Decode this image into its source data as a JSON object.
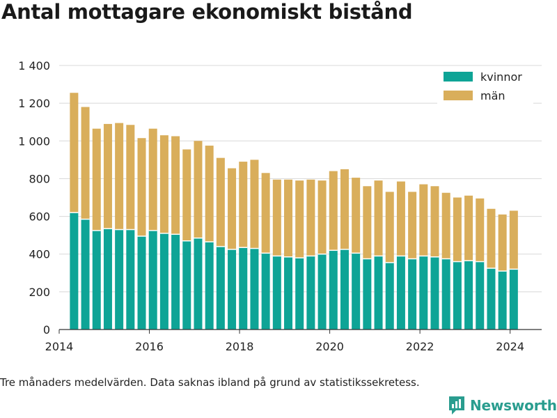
{
  "title": "Antal mottagare ekonomiskt bistånd",
  "footnote": "Tre månaders medelvärden. Data saknas ibland på grund av statistikssekretess.",
  "brand": {
    "name": "Newsworthy",
    "color": "#2a9d8f",
    "logo_icon": "bar-chart-speech-bubble-icon"
  },
  "colors": {
    "kvinnor": "#0ea496",
    "män": "#d9ae5b",
    "grid": "#d8d8d8",
    "axis": "#333333"
  },
  "chart_data": {
    "type": "bar",
    "stacked": true,
    "title": "Antal mottagare ekonomiskt bistånd",
    "xlabel": "",
    "ylabel": "",
    "ylim": [
      0,
      1400
    ],
    "xlim": [
      2014.0,
      2024.7
    ],
    "yticks": [
      0,
      200,
      400,
      600,
      800,
      1000,
      1200,
      1400
    ],
    "ytick_labels": [
      "0",
      "200",
      "400",
      "600",
      "800",
      "1 000",
      "1 200",
      "1 400"
    ],
    "xticks": [
      2014,
      2016,
      2018,
      2020,
      2022,
      2024
    ],
    "xtick_labels": [
      "2014",
      "2016",
      "2018",
      "2020",
      "2022",
      "2024"
    ],
    "grid": true,
    "legend": "top-right",
    "x": [
      2014.33,
      2014.58,
      2014.83,
      2015.08,
      2015.33,
      2015.58,
      2015.83,
      2016.08,
      2016.33,
      2016.58,
      2016.83,
      2017.08,
      2017.33,
      2017.58,
      2017.83,
      2018.08,
      2018.33,
      2018.58,
      2018.83,
      2019.08,
      2019.33,
      2019.58,
      2019.83,
      2020.08,
      2020.33,
      2020.58,
      2020.83,
      2021.08,
      2021.33,
      2021.58,
      2021.83,
      2022.08,
      2022.33,
      2022.58,
      2022.83,
      2023.08,
      2023.33,
      2023.58,
      2023.83,
      2024.08
    ],
    "series": [
      {
        "name": "kvinnor",
        "values": [
          620,
          585,
          525,
          535,
          530,
          530,
          495,
          525,
          510,
          505,
          470,
          485,
          465,
          440,
          425,
          435,
          430,
          405,
          390,
          385,
          380,
          390,
          400,
          420,
          425,
          405,
          375,
          390,
          355,
          390,
          375,
          390,
          385,
          375,
          360,
          365,
          360,
          325,
          310,
          320
        ]
      },
      {
        "name": "män",
        "values": [
          635,
          595,
          540,
          555,
          565,
          555,
          520,
          540,
          520,
          520,
          485,
          515,
          510,
          470,
          430,
          455,
          470,
          425,
          405,
          410,
          410,
          405,
          390,
          420,
          425,
          400,
          385,
          400,
          375,
          395,
          355,
          380,
          375,
          350,
          340,
          345,
          335,
          315,
          300,
          310
        ]
      }
    ]
  }
}
